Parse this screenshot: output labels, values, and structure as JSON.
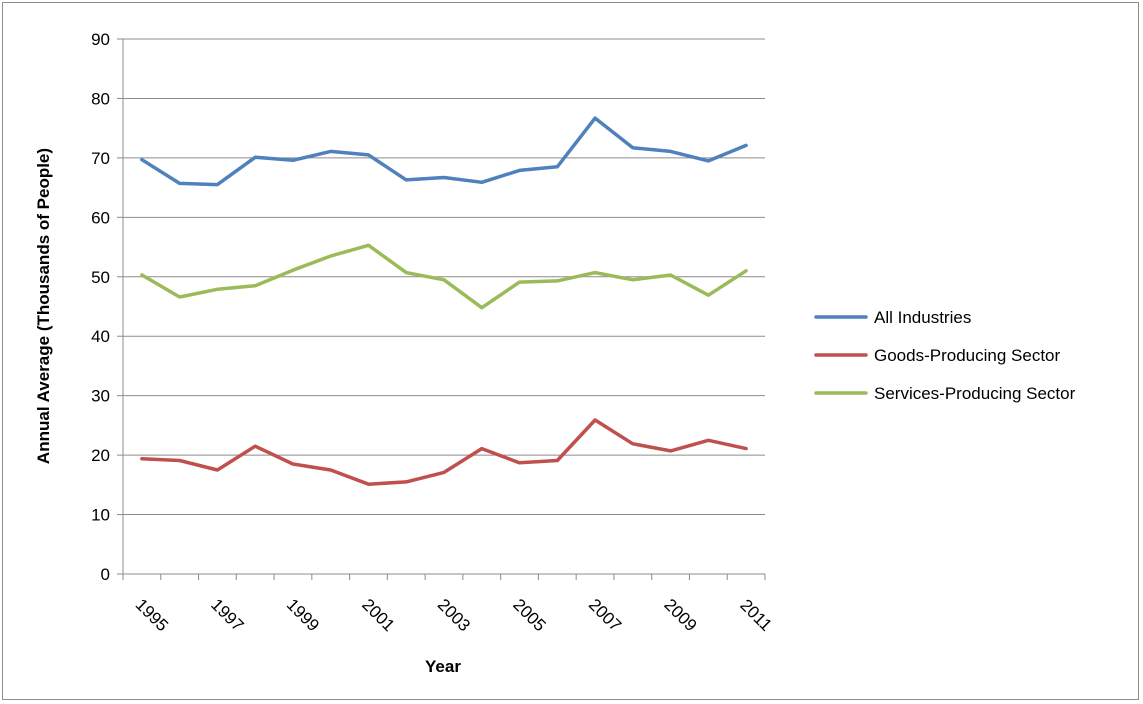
{
  "chart_data": {
    "type": "line",
    "title": "",
    "xlabel": "Year",
    "ylabel": "Annual Average (Thousands of People)",
    "ylim": [
      0,
      90
    ],
    "yticks": [
      0,
      10,
      20,
      30,
      40,
      50,
      60,
      70,
      80,
      90
    ],
    "x": [
      1995,
      1996,
      1997,
      1998,
      1999,
      2000,
      2001,
      2002,
      2003,
      2004,
      2005,
      2006,
      2007,
      2008,
      2009,
      2010,
      2011
    ],
    "xtick_labels": [
      "1995",
      "1997",
      "1999",
      "2001",
      "2003",
      "2005",
      "2007",
      "2009",
      "2011"
    ],
    "grid": true,
    "legend_position": "right",
    "series": [
      {
        "name": "All Industries",
        "color": "#4f81bd",
        "values": [
          69.7,
          65.7,
          65.5,
          70.1,
          69.6,
          71.1,
          70.5,
          66.3,
          66.7,
          65.9,
          67.9,
          68.5,
          76.7,
          71.7,
          71.1,
          69.5,
          72.1
        ]
      },
      {
        "name": "Goods-Producing Sector",
        "color": "#c0504d",
        "values": [
          19.4,
          19.1,
          17.5,
          21.5,
          18.5,
          17.5,
          15.1,
          15.5,
          17.1,
          21.1,
          18.7,
          19.1,
          25.9,
          21.9,
          20.7,
          22.5,
          21.1
        ]
      },
      {
        "name": "Services-Producing Sector",
        "color": "#9bbb59",
        "values": [
          50.3,
          46.6,
          47.9,
          48.5,
          51.1,
          53.5,
          55.3,
          50.7,
          49.5,
          44.8,
          49.1,
          49.3,
          50.7,
          49.5,
          50.3,
          46.9,
          51.0
        ]
      }
    ]
  }
}
